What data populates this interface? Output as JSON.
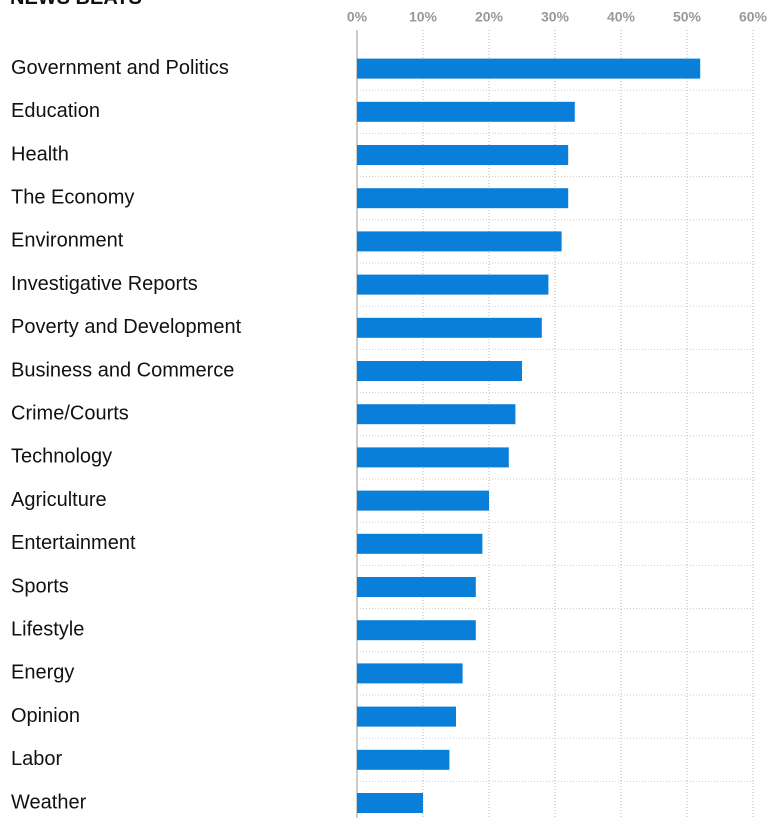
{
  "chart_data": {
    "type": "bar",
    "orientation": "horizontal",
    "title": "NEWS BEATS",
    "categories": [
      "Government and Politics",
      "Education",
      "Health",
      "The Economy",
      "Environment",
      "Investigative Reports",
      "Poverty and Development",
      "Business and Commerce",
      "Crime/Courts",
      "Technology",
      "Agriculture",
      "Entertainment",
      "Sports",
      "Lifestyle",
      "Energy",
      "Opinion",
      "Labor",
      "Weather"
    ],
    "values": [
      52,
      33,
      32,
      32,
      31,
      29,
      28,
      25,
      24,
      23,
      20,
      19,
      18,
      18,
      16,
      15,
      14,
      10
    ],
    "color": "#0a7fd9",
    "xlim": [
      0,
      60
    ],
    "xticks": [
      {
        "value": 0,
        "label": "0%"
      },
      {
        "value": 10,
        "label": "10%"
      },
      {
        "value": 20,
        "label": "20%"
      },
      {
        "value": 30,
        "label": "30%"
      },
      {
        "value": 40,
        "label": "40%"
      },
      {
        "value": 50,
        "label": "50%"
      },
      {
        "value": 60,
        "label": "60%"
      }
    ],
    "grid": true
  }
}
